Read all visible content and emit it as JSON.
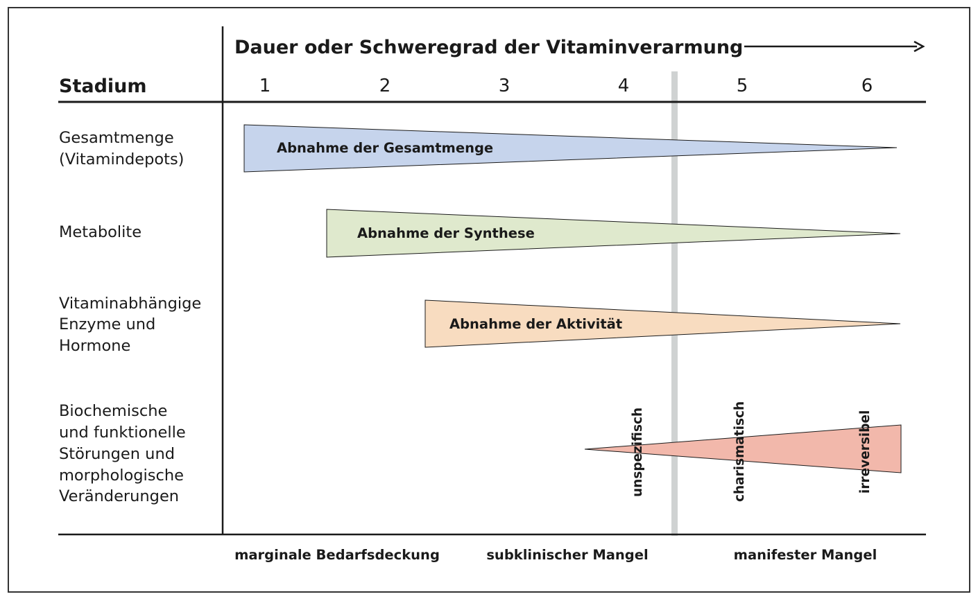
{
  "header": {
    "title": "Dauer oder Schweregrad der Vitaminverarmung",
    "stage_label": "Stadium",
    "stages": [
      "1",
      "2",
      "3",
      "4",
      "5",
      "6"
    ]
  },
  "rows": [
    {
      "label_lines": [
        "Gesamtmenge",
        "(Vitamindepots)"
      ],
      "bar_text": "Abnahme der Gesamtmenge",
      "color": "#c6d4ec"
    },
    {
      "label_lines": [
        "Metabolite"
      ],
      "bar_text": "Abnahme der Synthese",
      "color": "#dfe9cd"
    },
    {
      "label_lines": [
        "Vitaminabhängige",
        "Enzyme und",
        "Hormone"
      ],
      "bar_text": "Abnahme der Aktivität",
      "color": "#f8dcc0"
    },
    {
      "label_lines": [
        "Biochemische",
        "und funktionelle",
        "Störungen und",
        "morphologische",
        "Veränderungen"
      ],
      "color": "#f2b8ab",
      "vertical_labels": [
        "unspezifisch",
        "charismatisch",
        "irreversibel"
      ]
    }
  ],
  "footer": [
    "marginale Bedarfsdeckung",
    "subklinischer Mangel",
    "manifester Mangel"
  ],
  "colors": {
    "line": "#1a1a1a",
    "separator": "#cfd2d2"
  }
}
